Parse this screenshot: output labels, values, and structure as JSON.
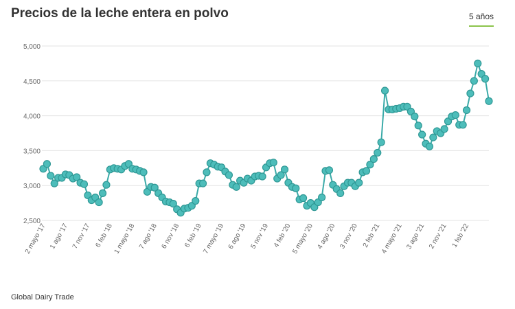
{
  "title": "Precios de la leche entera en polvo",
  "range_tab": "5 años",
  "source": "Global Dairy Trade",
  "chart_data": {
    "type": "line",
    "title": "Precios de la leche entera en polvo",
    "xlabel": "",
    "ylabel": "",
    "ylim": [
      2500,
      5000
    ],
    "y_ticks": [
      "2,500",
      "3,000",
      "3,500",
      "4,000",
      "4,500",
      "5,000"
    ],
    "y_tick_values": [
      2500,
      3000,
      3500,
      4000,
      4500,
      5000
    ],
    "x_tick_labels": [
      "2 mayo '17",
      "1 ago '17",
      "7 nov '17",
      "6 feb '18",
      "1 mayo '18",
      "7 ago '18",
      "6 nov '18",
      "6 feb '19",
      "7 mayo '19",
      "6 ago '19",
      "5 nov '19",
      "4 feb '20",
      "5 mayo '20",
      "4 ago '20",
      "3 nov '20",
      "2 feb '21",
      "4 mayo '21",
      "3 ago '21",
      "2 nov '21",
      "1 feb '22"
    ],
    "grid": true,
    "color": "#3aaaa8",
    "values": [
      3240,
      3310,
      3140,
      3030,
      3110,
      3110,
      3160,
      3150,
      3100,
      3120,
      3040,
      3020,
      2860,
      2790,
      2830,
      2760,
      2890,
      3010,
      3230,
      3250,
      3240,
      3230,
      3280,
      3310,
      3240,
      3230,
      3210,
      3190,
      2910,
      2980,
      2970,
      2890,
      2830,
      2770,
      2760,
      2740,
      2660,
      2610,
      2670,
      2680,
      2710,
      2780,
      3030,
      3030,
      3190,
      3320,
      3300,
      3270,
      3260,
      3200,
      3150,
      3010,
      2980,
      3070,
      3040,
      3100,
      3070,
      3130,
      3140,
      3130,
      3260,
      3320,
      3330,
      3100,
      3150,
      3230,
      3040,
      2980,
      2960,
      2800,
      2820,
      2710,
      2750,
      2690,
      2760,
      2830,
      3210,
      3220,
      3010,
      2950,
      2890,
      2990,
      3040,
      3040,
      2990,
      3040,
      3190,
      3210,
      3300,
      3380,
      3470,
      3620,
      4360,
      4090,
      4090,
      4100,
      4110,
      4130,
      4130,
      4060,
      3990,
      3860,
      3730,
      3600,
      3560,
      3690,
      3780,
      3750,
      3810,
      3920,
      3990,
      4010,
      3870,
      3870,
      4080,
      4320,
      4500,
      4750,
      4600,
      4530,
      4210
    ]
  }
}
